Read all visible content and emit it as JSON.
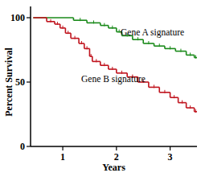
{
  "chart_data": {
    "type": "line",
    "line_style": "step",
    "x_label": "Years",
    "y_label": "Percent Survival",
    "xlim": [
      0.4,
      3.5
    ],
    "ylim": [
      0,
      100
    ],
    "xticks": [
      1,
      2,
      3
    ],
    "yticks": [
      0,
      50,
      100
    ],
    "grid": false,
    "series": [
      {
        "name": "Gene A signature",
        "color": "#1a8a1a",
        "x": [
          0.45,
          1.2,
          1.45,
          1.7,
          1.85,
          2.0,
          2.1,
          2.3,
          2.5,
          2.7,
          2.9,
          3.1,
          3.3,
          3.45
        ],
        "values": [
          100,
          98,
          96,
          94,
          92,
          89,
          86,
          83,
          80,
          78,
          76,
          74,
          71,
          69
        ]
      },
      {
        "name": "Gene B signature",
        "color": "#c0141e",
        "x": [
          0.45,
          0.7,
          0.85,
          0.95,
          1.05,
          1.15,
          1.3,
          1.4,
          1.5,
          1.55,
          1.7,
          1.85,
          2.0,
          2.2,
          2.4,
          2.6,
          2.8,
          3.0,
          3.15,
          3.3,
          3.45
        ],
        "values": [
          100,
          97,
          95,
          92,
          88,
          84,
          80,
          76,
          70,
          66,
          63,
          60,
          57,
          54,
          50,
          46,
          42,
          38,
          34,
          30,
          27
        ]
      }
    ]
  }
}
